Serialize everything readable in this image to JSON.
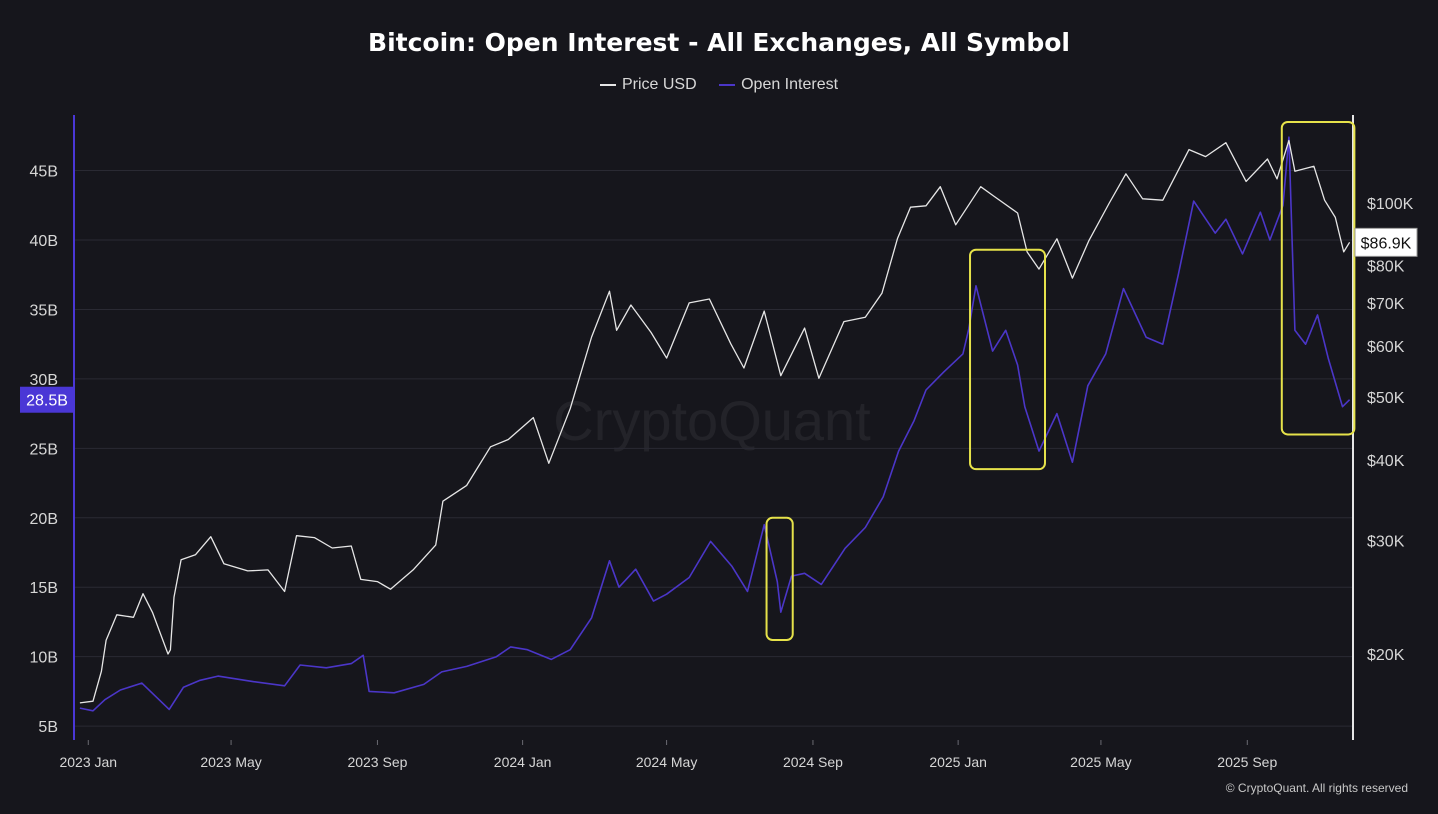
{
  "chart_data": {
    "type": "line",
    "title": "Bitcoin: Open Interest - All Exchanges, All Symbol",
    "copyright": "© CryptoQuant. All rights reserved",
    "watermark": "CryptoQuant",
    "colors": {
      "background": "#16161c",
      "price": "#e6e6e6",
      "open_interest": "#4b36c8",
      "highlight_box": "#e6e24a",
      "axis_text": "#d6d6d6",
      "oi_badge": "#4a37d6",
      "price_badge": "#ffffff"
    },
    "legend": {
      "position": "top-center"
    },
    "x_axis": {
      "ticks": [
        "2023 Jan",
        "2023 May",
        "2023 Sep",
        "2024 Jan",
        "2024 May",
        "2024 Sep",
        "2025 Jan",
        "2025 May",
        "2025 Sep"
      ],
      "range": [
        "2022-12-20",
        "2025-11-28"
      ]
    },
    "y_left": {
      "label": "",
      "ticks": [
        "5B",
        "10B",
        "15B",
        "20B",
        "25B",
        "30B",
        "35B",
        "40B",
        "45B"
      ],
      "range": [
        4,
        49
      ],
      "current_label": "28.5B",
      "current_value": 28.5
    },
    "y_right": {
      "label": "",
      "scale": "log",
      "ticks": [
        "$20K",
        "$30K",
        "$40K",
        "$50K",
        "$60K",
        "$70K",
        "$80K",
        "$100K"
      ],
      "tick_values": [
        20000,
        30000,
        40000,
        50000,
        60000,
        70000,
        80000,
        100000
      ],
      "current_label": "$86.9K",
      "current_value": 86900
    },
    "grid": true,
    "series": [
      {
        "name": "Price USD",
        "axis": "right",
        "points": [
          [
            "2022-12-25",
            16800
          ],
          [
            "2023-01-05",
            16900
          ],
          [
            "2023-01-12",
            18800
          ],
          [
            "2023-01-16",
            21000
          ],
          [
            "2023-01-25",
            23000
          ],
          [
            "2023-02-08",
            22800
          ],
          [
            "2023-02-16",
            24800
          ],
          [
            "2023-02-24",
            23200
          ],
          [
            "2023-03-09",
            20000
          ],
          [
            "2023-03-11",
            20300
          ],
          [
            "2023-03-14",
            24500
          ],
          [
            "2023-03-20",
            28000
          ],
          [
            "2023-04-01",
            28500
          ],
          [
            "2023-04-14",
            30400
          ],
          [
            "2023-04-25",
            27600
          ],
          [
            "2023-05-15",
            26900
          ],
          [
            "2023-06-01",
            27000
          ],
          [
            "2023-06-15",
            25000
          ],
          [
            "2023-06-25",
            30500
          ],
          [
            "2023-07-10",
            30300
          ],
          [
            "2023-07-25",
            29200
          ],
          [
            "2023-08-10",
            29400
          ],
          [
            "2023-08-18",
            26100
          ],
          [
            "2023-09-01",
            25900
          ],
          [
            "2023-09-12",
            25200
          ],
          [
            "2023-10-01",
            27000
          ],
          [
            "2023-10-20",
            29500
          ],
          [
            "2023-10-26",
            34500
          ],
          [
            "2023-11-15",
            36500
          ],
          [
            "2023-12-05",
            41900
          ],
          [
            "2023-12-20",
            43000
          ],
          [
            "2024-01-10",
            46500
          ],
          [
            "2024-01-23",
            39500
          ],
          [
            "2024-02-10",
            48000
          ],
          [
            "2024-02-28",
            62000
          ],
          [
            "2024-03-14",
            73000
          ],
          [
            "2024-03-20",
            63500
          ],
          [
            "2024-04-01",
            69500
          ],
          [
            "2024-04-18",
            63000
          ],
          [
            "2024-05-01",
            57500
          ],
          [
            "2024-05-20",
            70000
          ],
          [
            "2024-06-06",
            71000
          ],
          [
            "2024-06-24",
            60500
          ],
          [
            "2024-07-05",
            55500
          ],
          [
            "2024-07-22",
            68000
          ],
          [
            "2024-08-05",
            54000
          ],
          [
            "2024-08-25",
            64000
          ],
          [
            "2024-09-06",
            53500
          ],
          [
            "2024-09-27",
            65500
          ],
          [
            "2024-10-15",
            66500
          ],
          [
            "2024-10-29",
            72500
          ],
          [
            "2024-11-11",
            88000
          ],
          [
            "2024-11-22",
            98500
          ],
          [
            "2024-12-05",
            99000
          ],
          [
            "2024-12-17",
            106000
          ],
          [
            "2024-12-30",
            92500
          ],
          [
            "2025-01-20",
            106000
          ],
          [
            "2025-01-31",
            102500
          ],
          [
            "2025-02-20",
            96500
          ],
          [
            "2025-02-28",
            84000
          ],
          [
            "2025-03-10",
            79000
          ],
          [
            "2025-03-25",
            88000
          ],
          [
            "2025-04-07",
            76500
          ],
          [
            "2025-04-21",
            87500
          ],
          [
            "2025-05-08",
            100000
          ],
          [
            "2025-05-22",
            111000
          ],
          [
            "2025-06-05",
            101500
          ],
          [
            "2025-06-22",
            101000
          ],
          [
            "2025-07-14",
            121000
          ],
          [
            "2025-07-28",
            118000
          ],
          [
            "2025-08-14",
            124000
          ],
          [
            "2025-08-31",
            108000
          ],
          [
            "2025-09-18",
            117000
          ],
          [
            "2025-09-26",
            109000
          ],
          [
            "2025-10-06",
            125000
          ],
          [
            "2025-10-11",
            112000
          ],
          [
            "2025-10-27",
            114000
          ],
          [
            "2025-11-05",
            101000
          ],
          [
            "2025-11-14",
            95000
          ],
          [
            "2025-11-21",
            84000
          ],
          [
            "2025-11-26",
            86900
          ]
        ]
      },
      {
        "name": "Open Interest",
        "axis": "left",
        "points": [
          [
            "2022-12-25",
            6.3
          ],
          [
            "2023-01-05",
            6.1
          ],
          [
            "2023-01-15",
            6.9
          ],
          [
            "2023-01-28",
            7.6
          ],
          [
            "2023-02-15",
            8.1
          ],
          [
            "2023-03-10",
            6.2
          ],
          [
            "2023-03-22",
            7.8
          ],
          [
            "2023-04-05",
            8.3
          ],
          [
            "2023-04-20",
            8.6
          ],
          [
            "2023-05-20",
            8.2
          ],
          [
            "2023-06-15",
            7.9
          ],
          [
            "2023-06-28",
            9.4
          ],
          [
            "2023-07-20",
            9.2
          ],
          [
            "2023-08-10",
            9.5
          ],
          [
            "2023-08-20",
            10.1
          ],
          [
            "2023-08-25",
            7.5
          ],
          [
            "2023-09-15",
            7.4
          ],
          [
            "2023-10-10",
            8.0
          ],
          [
            "2023-10-25",
            8.9
          ],
          [
            "2023-11-15",
            9.3
          ],
          [
            "2023-12-10",
            10.0
          ],
          [
            "2023-12-22",
            10.7
          ],
          [
            "2024-01-05",
            10.5
          ],
          [
            "2024-01-25",
            9.8
          ],
          [
            "2024-02-10",
            10.5
          ],
          [
            "2024-02-28",
            12.8
          ],
          [
            "2024-03-14",
            16.9
          ],
          [
            "2024-03-22",
            15.0
          ],
          [
            "2024-04-05",
            16.3
          ],
          [
            "2024-04-20",
            14.0
          ],
          [
            "2024-05-01",
            14.5
          ],
          [
            "2024-05-20",
            15.7
          ],
          [
            "2024-06-07",
            18.3
          ],
          [
            "2024-06-25",
            16.5
          ],
          [
            "2024-07-08",
            14.7
          ],
          [
            "2024-07-22",
            19.5
          ],
          [
            "2024-08-02",
            15.4
          ],
          [
            "2024-08-05",
            13.2
          ],
          [
            "2024-08-14",
            15.8
          ],
          [
            "2024-08-25",
            16.0
          ],
          [
            "2024-09-08",
            15.2
          ],
          [
            "2024-09-28",
            17.8
          ],
          [
            "2024-10-15",
            19.3
          ],
          [
            "2024-10-30",
            21.5
          ],
          [
            "2024-11-12",
            24.8
          ],
          [
            "2024-11-25",
            27.0
          ],
          [
            "2024-12-05",
            29.2
          ],
          [
            "2024-12-20",
            30.5
          ],
          [
            "2025-01-05",
            31.8
          ],
          [
            "2025-01-10",
            33.6
          ],
          [
            "2025-01-16",
            36.7
          ],
          [
            "2025-01-30",
            32.0
          ],
          [
            "2025-02-10",
            33.5
          ],
          [
            "2025-02-20",
            31.0
          ],
          [
            "2025-02-26",
            28.0
          ],
          [
            "2025-03-10",
            24.8
          ],
          [
            "2025-03-25",
            27.5
          ],
          [
            "2025-04-07",
            24.0
          ],
          [
            "2025-04-20",
            29.5
          ],
          [
            "2025-05-05",
            31.8
          ],
          [
            "2025-05-20",
            36.5
          ],
          [
            "2025-06-08",
            33.0
          ],
          [
            "2025-06-22",
            32.5
          ],
          [
            "2025-07-05",
            37.5
          ],
          [
            "2025-07-18",
            42.8
          ],
          [
            "2025-08-05",
            40.5
          ],
          [
            "2025-08-14",
            41.5
          ],
          [
            "2025-08-28",
            39.0
          ],
          [
            "2025-09-12",
            42.0
          ],
          [
            "2025-09-20",
            40.0
          ],
          [
            "2025-10-01",
            42.5
          ],
          [
            "2025-10-06",
            47.4
          ],
          [
            "2025-10-11",
            33.5
          ],
          [
            "2025-10-20",
            32.5
          ],
          [
            "2025-10-30",
            34.6
          ],
          [
            "2025-11-08",
            31.5
          ],
          [
            "2025-11-20",
            28.0
          ],
          [
            "2025-11-26",
            28.5
          ]
        ]
      }
    ],
    "highlight_boxes": [
      {
        "x_start": "2024-07-24",
        "x_end": "2024-08-15",
        "y_low": 11.2,
        "y_high": 20.0
      },
      {
        "x_start": "2025-01-11",
        "x_end": "2025-03-15",
        "y_low": 23.5,
        "y_high": 39.3
      },
      {
        "x_start": "2025-09-30",
        "x_end": "2025-11-30",
        "y_low": 26.0,
        "y_high": 48.5
      }
    ]
  }
}
